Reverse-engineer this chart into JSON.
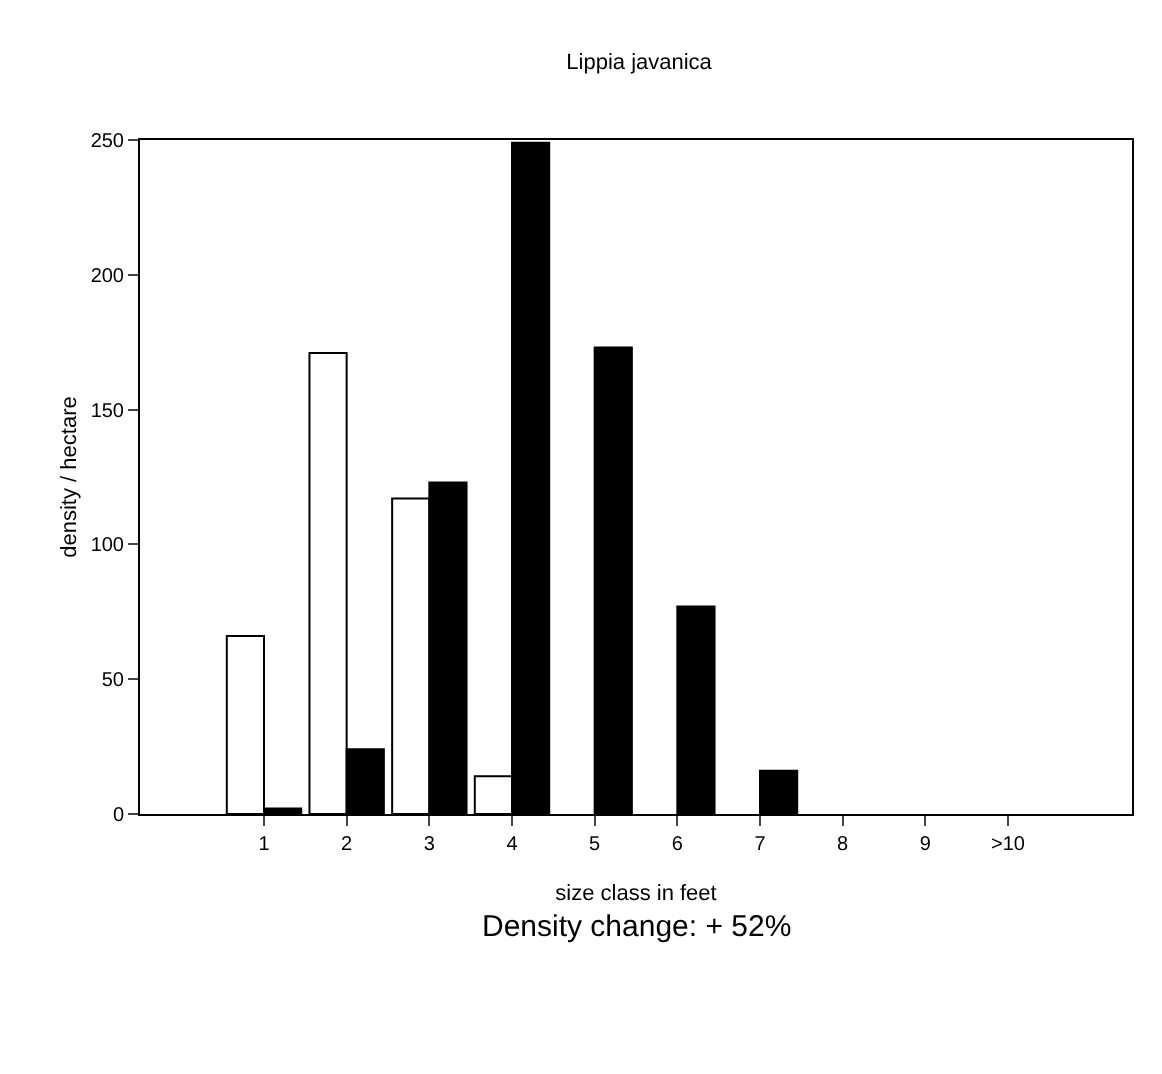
{
  "chart_data": {
    "type": "bar",
    "title": "Lippia javanica",
    "xlabel": "size class in feet",
    "ylabel": "density / hectare",
    "categories": [
      null,
      "1",
      "2",
      "3",
      "4",
      "5",
      "6",
      "7",
      "8",
      "9",
      ">10",
      null
    ],
    "series": [
      {
        "color": "#ffffff",
        "values": [
          0,
          66,
          171,
          117,
          14,
          0,
          0,
          0,
          0,
          0,
          0,
          0
        ]
      },
      {
        "color": "#000000",
        "values": [
          0,
          2,
          24,
          123,
          249,
          173,
          77,
          16,
          0,
          0,
          0,
          0
        ]
      }
    ],
    "ylim": [
      0,
      250
    ],
    "yticks": [
      0,
      50,
      100,
      150,
      200,
      250
    ],
    "grid": false,
    "annotations": [
      "Density change: + 52%"
    ]
  }
}
